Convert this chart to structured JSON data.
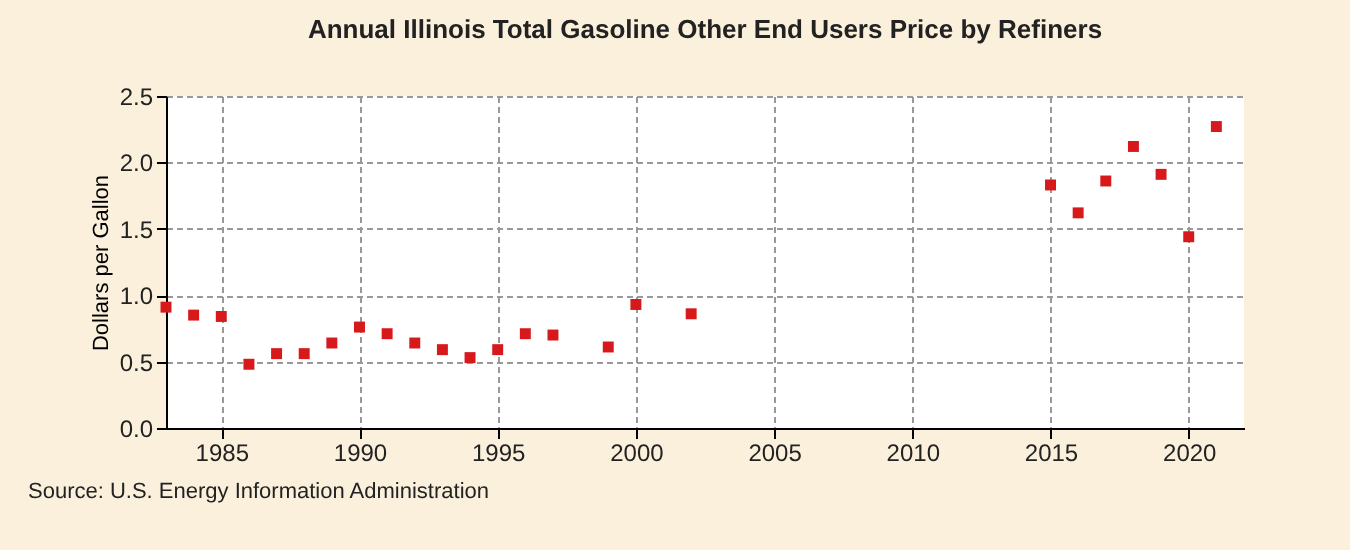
{
  "chart_data": {
    "type": "scatter",
    "title": "Annual Illinois Total Gasoline Other End Users Price by Refiners",
    "ylabel": "Dollars per Gallon",
    "x": [
      1983,
      1984,
      1985,
      1986,
      1987,
      1988,
      1989,
      1990,
      1991,
      1992,
      1993,
      1994,
      1995,
      1996,
      1997,
      1999,
      2000,
      2002,
      2015,
      2016,
      2017,
      2018,
      2019,
      2020,
      2021
    ],
    "series": [
      {
        "color": "#d7191c",
        "values": [
          0.91,
          0.85,
          0.84,
          0.48,
          0.56,
          0.56,
          0.64,
          0.76,
          0.71,
          0.64,
          0.59,
          0.53,
          0.59,
          0.71,
          0.7,
          0.61,
          0.93,
          0.86,
          1.83,
          1.62,
          1.86,
          2.12,
          1.91,
          1.44,
          2.27
        ]
      }
    ],
    "xlim": [
      1983,
      2022
    ],
    "xticks": [
      1985,
      1990,
      1995,
      2000,
      2005,
      2010,
      2015,
      2020
    ],
    "ylim": [
      0,
      2.5
    ],
    "yticks": [
      {
        "value": 0,
        "label": "0.0"
      },
      {
        "value": 0.5,
        "label": "0.5"
      },
      {
        "value": 1,
        "label": "1.0"
      },
      {
        "value": 1.5,
        "label": "1.5"
      },
      {
        "value": 2,
        "label": "2.0"
      },
      {
        "value": 2.5,
        "label": "2.5"
      }
    ],
    "grid": true,
    "marker": "square",
    "annotations": [
      "Source: U.S. Energy Information Administration"
    ]
  }
}
